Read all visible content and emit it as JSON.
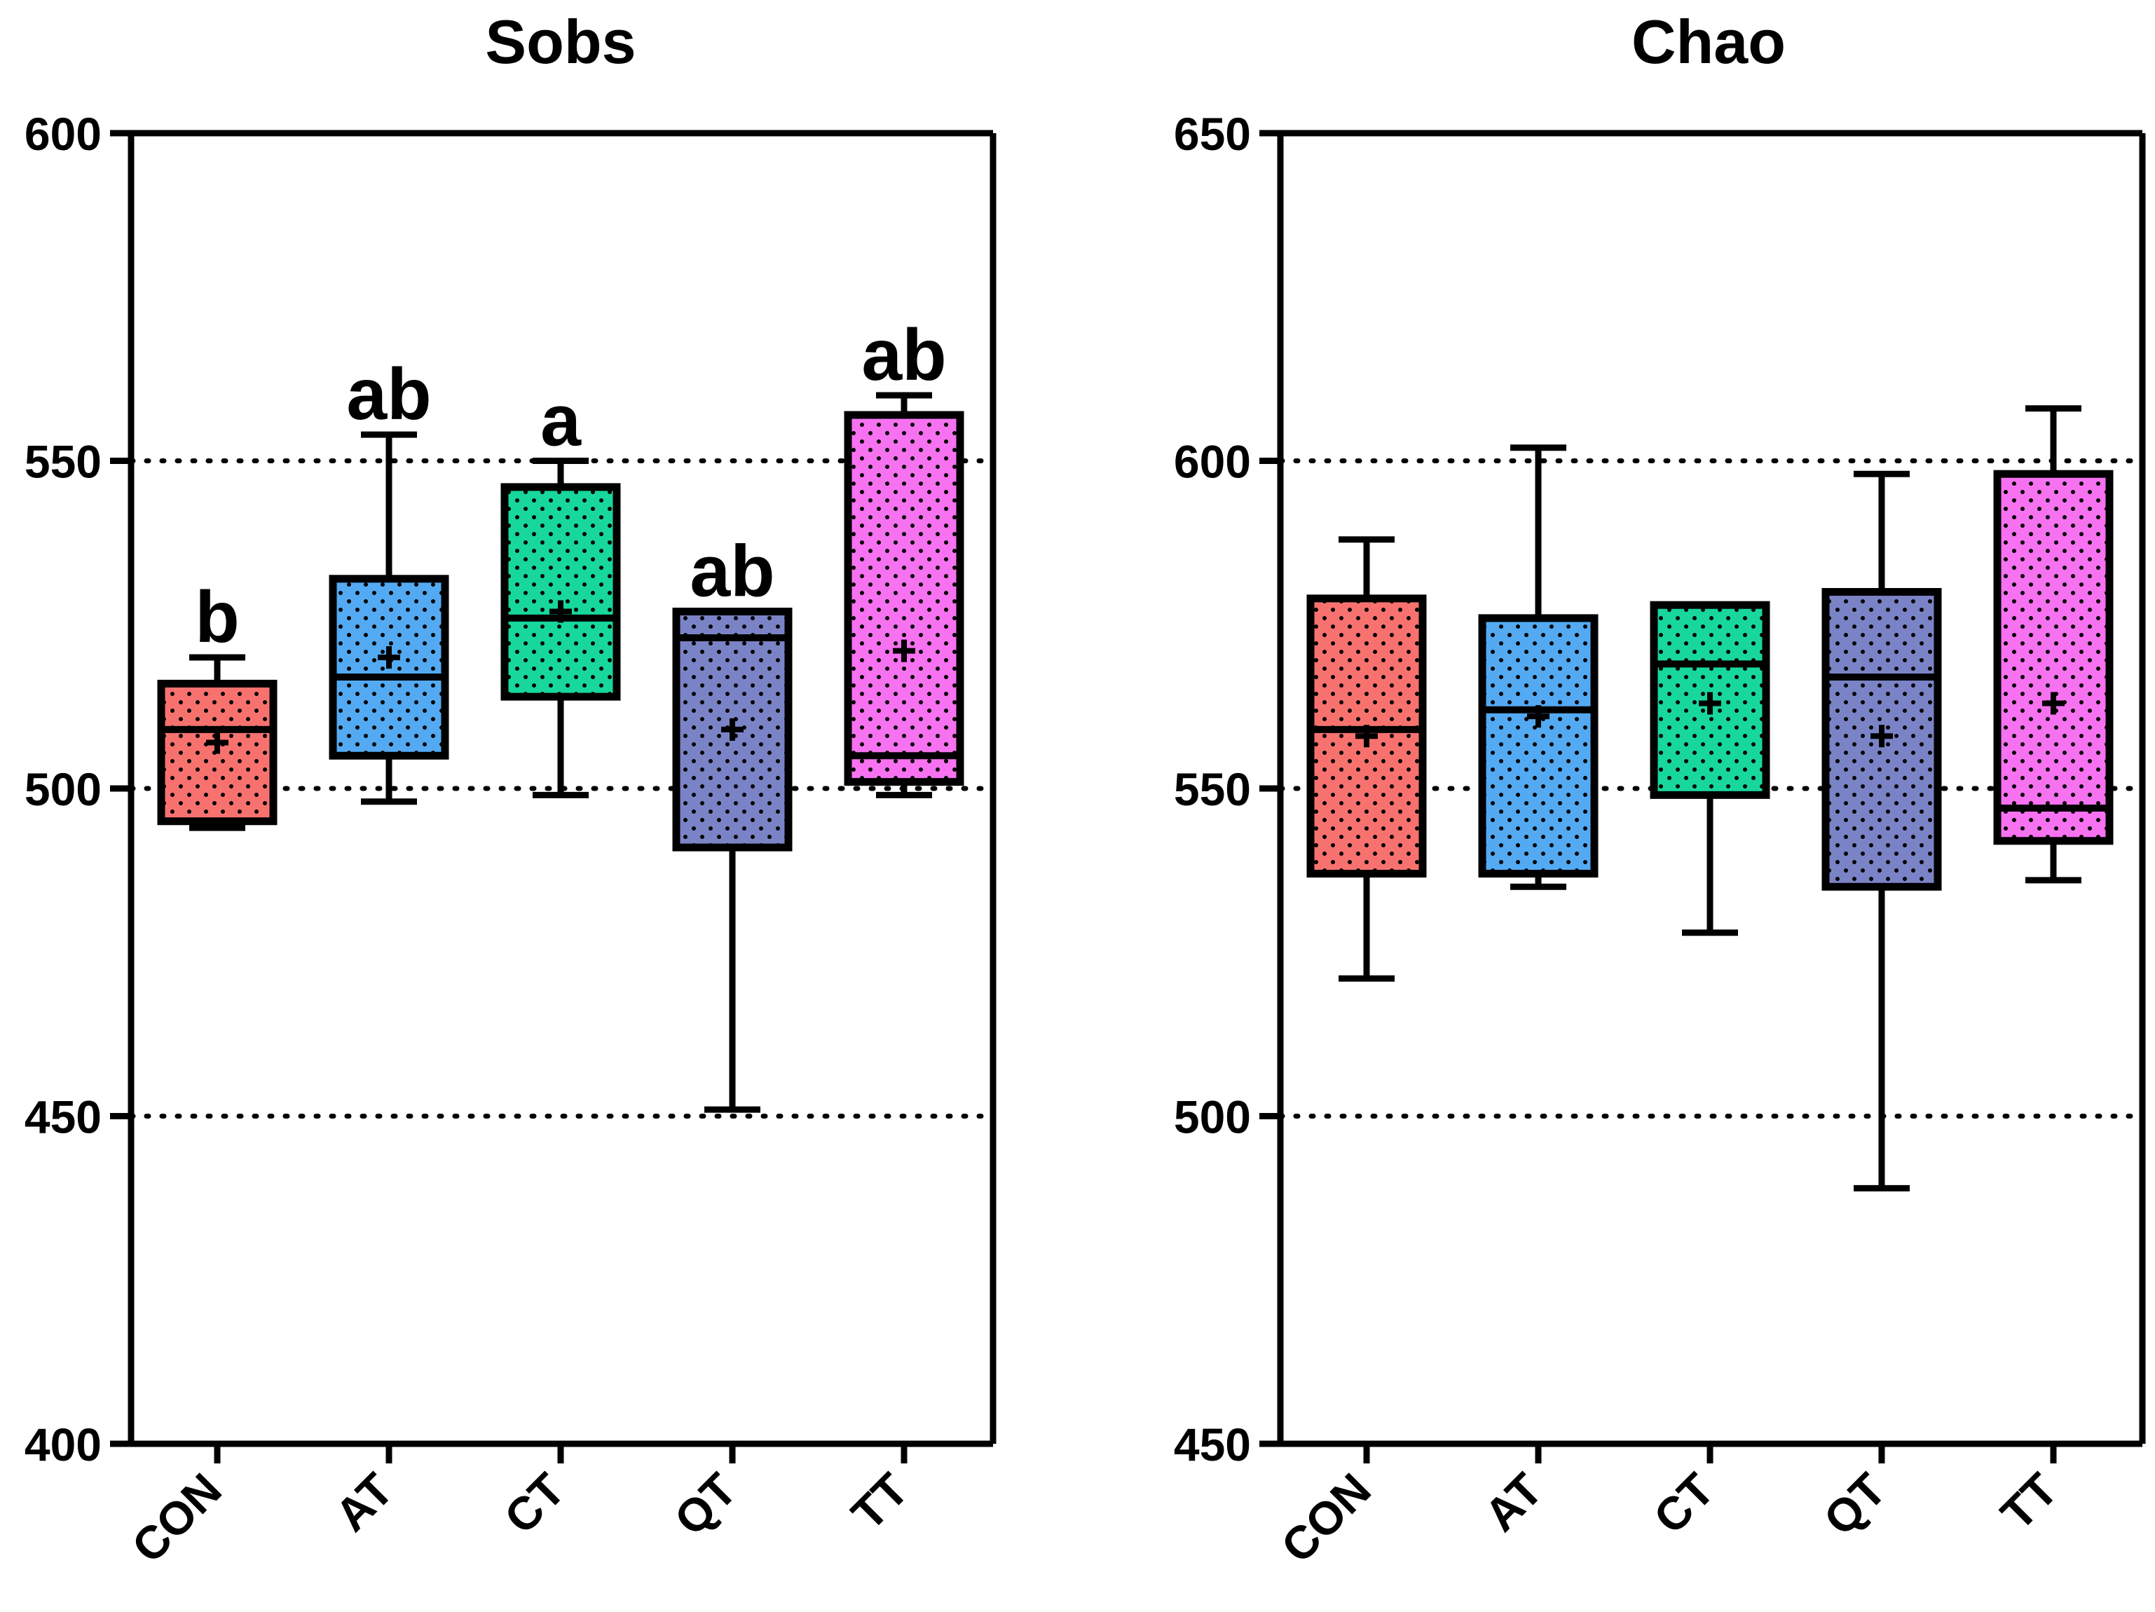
{
  "chart_data": [
    {
      "type": "box",
      "title": "Sobs",
      "xlabel": "",
      "ylabel": "",
      "ylim": [
        400,
        600
      ],
      "yticks": [
        400,
        450,
        500,
        550,
        600
      ],
      "reference_lines": [
        450,
        500,
        550
      ],
      "categories": [
        "CON",
        "AT",
        "CT",
        "QT",
        "TT"
      ],
      "boxes": [
        {
          "category": "CON",
          "min": 494,
          "q1": 495,
          "median": 509,
          "q3": 516,
          "max": 520,
          "mean": 507,
          "letter": "b"
        },
        {
          "category": "AT",
          "min": 498,
          "q1": 505,
          "median": 517,
          "q3": 532,
          "max": 554,
          "mean": 520,
          "letter": "ab"
        },
        {
          "category": "CT",
          "min": 499,
          "q1": 514,
          "median": 526,
          "q3": 546,
          "max": 550,
          "mean": 527,
          "letter": "a"
        },
        {
          "category": "QT",
          "min": 451,
          "q1": 491,
          "median": 523,
          "q3": 527,
          "max": 527,
          "mean": 509,
          "letter": "ab"
        },
        {
          "category": "TT",
          "min": 499,
          "q1": 501,
          "median": 505,
          "q3": 557,
          "max": 560,
          "mean": 521,
          "letter": "ab"
        }
      ]
    },
    {
      "type": "box",
      "title": "Chao",
      "xlabel": "",
      "ylabel": "",
      "ylim": [
        450,
        650
      ],
      "yticks": [
        450,
        500,
        550,
        600,
        650
      ],
      "reference_lines": [
        500,
        550,
        600
      ],
      "categories": [
        "CON",
        "AT",
        "CT",
        "QT",
        "TT"
      ],
      "boxes": [
        {
          "category": "CON",
          "min": 521,
          "q1": 537,
          "median": 559,
          "q3": 579,
          "max": 588,
          "mean": 558
        },
        {
          "category": "AT",
          "min": 535,
          "q1": 537,
          "median": 562,
          "q3": 576,
          "max": 602,
          "mean": 561
        },
        {
          "category": "CT",
          "min": 528,
          "q1": 549,
          "median": 569,
          "q3": 578,
          "max": 578,
          "mean": 563
        },
        {
          "category": "QT",
          "min": 489,
          "q1": 535,
          "median": 567,
          "q3": 580,
          "max": 598,
          "mean": 558
        },
        {
          "category": "TT",
          "min": 536,
          "q1": 542,
          "median": 547,
          "q3": 598,
          "max": 608,
          "mean": 563
        }
      ]
    }
  ],
  "colors": {
    "CON": "#f7726e",
    "AT": "#53aaf2",
    "CT": "#18d79c",
    "QT": "#7b83c7",
    "TT": "#f672f0"
  }
}
